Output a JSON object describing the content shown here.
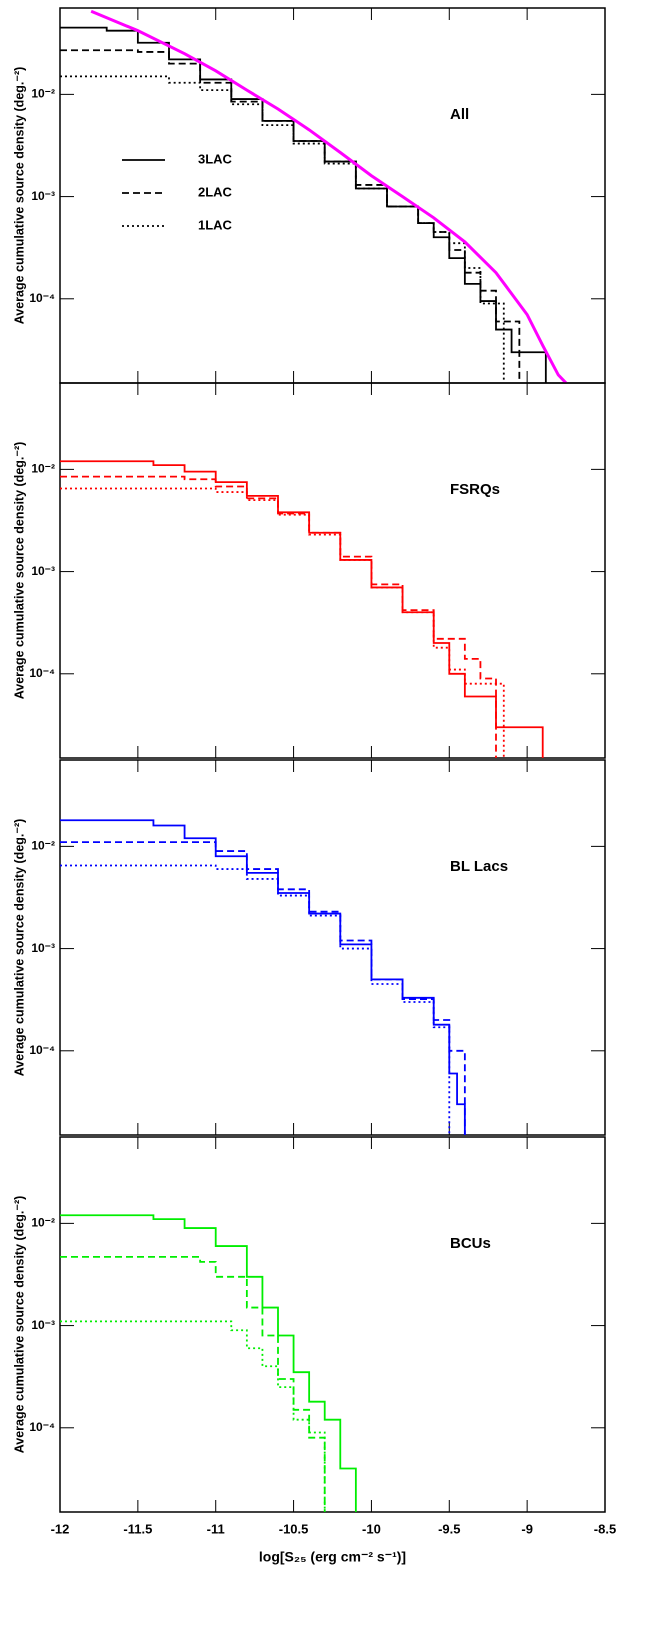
{
  "chart_data": [
    {
      "type": "line",
      "label": "All",
      "ylabel": "Average cumulative source density (deg.⁻²)",
      "xlim": [
        -12,
        -8.5
      ],
      "xticks": [
        -12,
        -11.5,
        -11,
        -10.5,
        -10,
        -9.5,
        -9,
        -8.5
      ],
      "ylim": [
        1.5e-05,
        0.07
      ],
      "log_y": true,
      "yticks": [
        {
          "value": 0.0001,
          "label": "10⁻⁴"
        },
        {
          "value": 0.001,
          "label": "10⁻³"
        },
        {
          "value": 0.01,
          "label": "10⁻²"
        }
      ],
      "series": [
        {
          "name": "3LAC",
          "color": "#000000",
          "linestyle": "solid",
          "step": true,
          "x": [
            -12,
            -11.7,
            -11.5,
            -11.3,
            -11.1,
            -10.9,
            -10.7,
            -10.5,
            -10.3,
            -10.1,
            -9.9,
            -9.7,
            -9.6,
            -9.5,
            -9.4,
            -9.3,
            -9.2,
            -9.1,
            -8.88
          ],
          "values": [
            0.045,
            0.042,
            0.032,
            0.022,
            0.014,
            0.009,
            0.0055,
            0.0035,
            0.0022,
            0.0012,
            0.0008,
            0.00055,
            0.0004,
            0.00025,
            0.00014,
            9.5e-05,
            5e-05,
            3e-05,
            3e-05
          ]
        },
        {
          "name": "2LAC",
          "color": "#000000",
          "linestyle": "dashed",
          "step": true,
          "x": [
            -12,
            -11.5,
            -11.3,
            -11.1,
            -10.9,
            -10.7,
            -10.5,
            -10.3,
            -10.1,
            -9.9,
            -9.7,
            -9.6,
            -9.5,
            -9.4,
            -9.3,
            -9.2,
            -9.05
          ],
          "values": [
            0.027,
            0.026,
            0.02,
            0.013,
            0.0085,
            0.0055,
            0.0035,
            0.0022,
            0.0013,
            0.0008,
            0.00055,
            0.00045,
            0.0003,
            0.00018,
            0.00012,
            6e-05,
            3e-05
          ]
        },
        {
          "name": "1LAC",
          "color": "#000000",
          "linestyle": "dotted",
          "step": true,
          "x": [
            -12,
            -11.5,
            -11.3,
            -11.1,
            -10.9,
            -10.7,
            -10.5,
            -10.3,
            -10.1,
            -9.9,
            -9.7,
            -9.6,
            -9.5,
            -9.4,
            -9.3,
            -9.15
          ],
          "values": [
            0.015,
            0.015,
            0.013,
            0.011,
            0.008,
            0.005,
            0.0033,
            0.0021,
            0.0012,
            0.0008,
            0.00055,
            0.00045,
            0.00035,
            0.0002,
            9e-05,
            9e-05
          ]
        },
        {
          "color": "#ff00ff",
          "linestyle": "solid",
          "step": false,
          "width": 3,
          "x": [
            -11.8,
            -11.5,
            -11.2,
            -11,
            -10.8,
            -10.6,
            -10.4,
            -10.2,
            -10,
            -9.8,
            -9.6,
            -9.4,
            -9.2,
            -9,
            -8.9,
            -8.8,
            -8.75
          ],
          "values": [
            0.065,
            0.042,
            0.025,
            0.017,
            0.011,
            0.0072,
            0.0045,
            0.0027,
            0.0016,
            0.001,
            0.00062,
            0.00036,
            0.00018,
            7e-05,
            3.5e-05,
            1.8e-05,
            1.5e-05
          ]
        }
      ]
    },
    {
      "type": "line",
      "label": "FSRQs",
      "ylabel": "Average cumulative source density (deg.⁻²)",
      "xlim": [
        -12,
        -8.5
      ],
      "xticks": [
        -12,
        -11.5,
        -11,
        -10.5,
        -10,
        -9.5,
        -9,
        -8.5
      ],
      "ylim": [
        1.5e-05,
        0.07
      ],
      "log_y": true,
      "yticks": [
        {
          "value": 0.0001,
          "label": "10⁻⁴"
        },
        {
          "value": 0.001,
          "label": "10⁻³"
        },
        {
          "value": 0.01,
          "label": "10⁻²"
        }
      ],
      "series": [
        {
          "color": "#ff0000",
          "linestyle": "solid",
          "step": true,
          "x": [
            -12,
            -11.4,
            -11.2,
            -11,
            -10.8,
            -10.6,
            -10.4,
            -10.2,
            -10,
            -9.8,
            -9.6,
            -9.5,
            -9.4,
            -9.2,
            -8.9
          ],
          "values": [
            0.012,
            0.011,
            0.0095,
            0.0075,
            0.0055,
            0.0038,
            0.0024,
            0.0013,
            0.0007,
            0.0004,
            0.0002,
            0.0001,
            6e-05,
            3e-05,
            3e-05
          ]
        },
        {
          "color": "#ff0000",
          "linestyle": "dashed",
          "step": true,
          "x": [
            -12,
            -11.2,
            -11,
            -10.8,
            -10.6,
            -10.4,
            -10.2,
            -10,
            -9.8,
            -9.6,
            -9.4,
            -9.3,
            -9.2
          ],
          "values": [
            0.0085,
            0.008,
            0.0068,
            0.0052,
            0.0037,
            0.0024,
            0.0014,
            0.00075,
            0.00042,
            0.00022,
            0.00014,
            9e-05,
            5e-05
          ]
        },
        {
          "color": "#ff0000",
          "linestyle": "dotted",
          "step": true,
          "x": [
            -12,
            -11.3,
            -11,
            -10.8,
            -10.6,
            -10.4,
            -10.2,
            -10,
            -9.8,
            -9.6,
            -9.5,
            -9.4,
            -9.15
          ],
          "values": [
            0.0065,
            0.0065,
            0.006,
            0.005,
            0.0036,
            0.0023,
            0.0013,
            0.0007,
            0.0004,
            0.00018,
            0.00011,
            8e-05,
            8e-05
          ]
        }
      ]
    },
    {
      "type": "line",
      "label": "BL Lacs",
      "ylabel": "Average cumulative source density (deg.⁻²)",
      "xlim": [
        -12,
        -8.5
      ],
      "xticks": [
        -12,
        -11.5,
        -11,
        -10.5,
        -10,
        -9.5,
        -9,
        -8.5
      ],
      "ylim": [
        1.5e-05,
        0.07
      ],
      "log_y": true,
      "yticks": [
        {
          "value": 0.0001,
          "label": "10⁻⁴"
        },
        {
          "value": 0.001,
          "label": "10⁻³"
        },
        {
          "value": 0.01,
          "label": "10⁻²"
        }
      ],
      "series": [
        {
          "color": "#0000ff",
          "linestyle": "solid",
          "step": true,
          "x": [
            -12,
            -11.4,
            -11.2,
            -11,
            -10.8,
            -10.6,
            -10.4,
            -10.2,
            -10,
            -9.8,
            -9.6,
            -9.5,
            -9.45,
            -9.4
          ],
          "values": [
            0.018,
            0.016,
            0.012,
            0.008,
            0.0055,
            0.0035,
            0.0022,
            0.0011,
            0.0005,
            0.00033,
            0.00018,
            6e-05,
            3e-05,
            3e-05
          ]
        },
        {
          "color": "#0000ff",
          "linestyle": "dashed",
          "step": true,
          "x": [
            -12,
            -11.3,
            -11,
            -10.8,
            -10.6,
            -10.4,
            -10.2,
            -10,
            -9.8,
            -9.6,
            -9.5,
            -9.4
          ],
          "values": [
            0.011,
            0.011,
            0.009,
            0.006,
            0.0038,
            0.0023,
            0.0012,
            0.0005,
            0.00032,
            0.0002,
            0.0001,
            5e-05
          ]
        },
        {
          "color": "#0000ff",
          "linestyle": "dotted",
          "step": true,
          "x": [
            -12,
            -11.2,
            -11,
            -10.8,
            -10.6,
            -10.4,
            -10.2,
            -10,
            -9.8,
            -9.6,
            -9.5
          ],
          "values": [
            0.0065,
            0.0065,
            0.006,
            0.0048,
            0.0033,
            0.0021,
            0.001,
            0.00045,
            0.0003,
            0.00017,
            0.0001
          ]
        }
      ]
    },
    {
      "type": "line",
      "label": "BCUs",
      "ylabel": "Average cumulative source density (deg.⁻²)",
      "xlabel": "log[S₂₅ (erg cm⁻² s⁻¹)]",
      "xlim": [
        -12,
        -8.5
      ],
      "xticks": [
        -12,
        -11.5,
        -11,
        -10.5,
        -10,
        -9.5,
        -9,
        -8.5
      ],
      "ylim": [
        1.5e-05,
        0.07
      ],
      "log_y": true,
      "yticks": [
        {
          "value": 0.0001,
          "label": "10⁻⁴"
        },
        {
          "value": 0.001,
          "label": "10⁻³"
        },
        {
          "value": 0.01,
          "label": "10⁻²"
        }
      ],
      "series": [
        {
          "color": "#00ee00",
          "linestyle": "solid",
          "step": true,
          "x": [
            -12,
            -11.4,
            -11.2,
            -11,
            -10.8,
            -10.7,
            -10.6,
            -10.5,
            -10.4,
            -10.3,
            -10.2,
            -10.1
          ],
          "values": [
            0.012,
            0.011,
            0.009,
            0.006,
            0.003,
            0.0015,
            0.0008,
            0.00035,
            0.00018,
            0.00012,
            4e-05,
            1.8e-05
          ]
        },
        {
          "color": "#00ee00",
          "linestyle": "dashed",
          "step": true,
          "x": [
            -12,
            -11.1,
            -11,
            -10.8,
            -10.7,
            -10.6,
            -10.5,
            -10.4,
            -10.3
          ],
          "values": [
            0.0047,
            0.0042,
            0.003,
            0.0015,
            0.0008,
            0.0003,
            0.00015,
            8e-05,
            3e-05
          ]
        },
        {
          "color": "#00ee00",
          "linestyle": "dotted",
          "step": true,
          "x": [
            -12,
            -10.9,
            -10.8,
            -10.7,
            -10.6,
            -10.5,
            -10.4,
            -10.3
          ],
          "values": [
            0.0011,
            0.0009,
            0.0006,
            0.0004,
            0.00025,
            0.00012,
            9e-05,
            3e-05
          ]
        }
      ]
    }
  ]
}
